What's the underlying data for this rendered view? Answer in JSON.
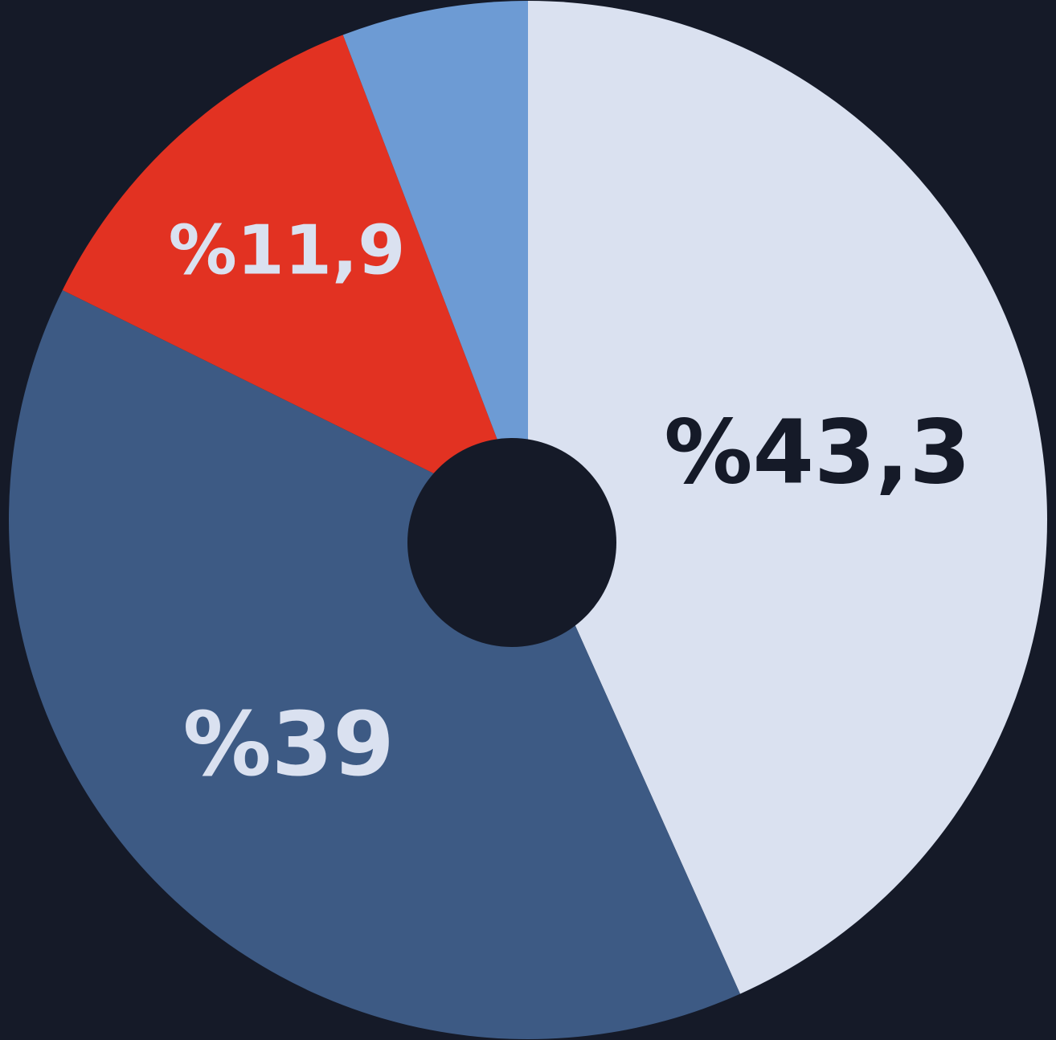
{
  "chart_data": {
    "type": "pie",
    "values": [
      43.3,
      39,
      11.9,
      5.8
    ],
    "value_labels": [
      "%43,3",
      "%39",
      "%11,9",
      null
    ],
    "colors": [
      "#dae1f0",
      "#3d5a84",
      "#e23222",
      "#6d9bd4"
    ]
  }
}
